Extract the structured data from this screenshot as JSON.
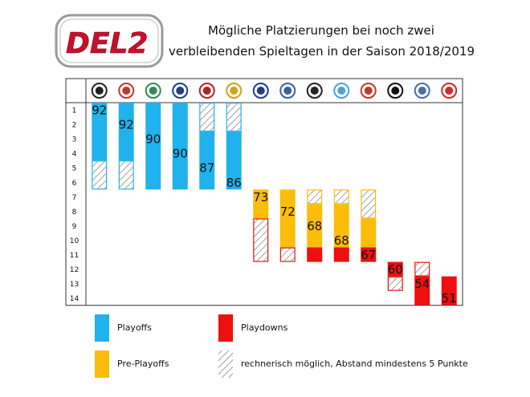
{
  "header": {
    "logo_text": "DEL2",
    "title_line1": "Mögliche Platzierungen bei noch zwei",
    "title_line2": "verbleibenden Spieltagen in der Saison 2018/2019"
  },
  "colors": {
    "playoffs": "#1fb2ec",
    "pre_playoffs": "#fcbc0a",
    "playdowns": "#ee0f0f",
    "hatch_line": "#777777",
    "grid": "#333333"
  },
  "chart_data": {
    "type": "bar",
    "orientation": "vertical-range",
    "y_axis": {
      "labels": [
        "1",
        "2",
        "3",
        "4",
        "5",
        "6",
        "7",
        "8",
        "9",
        "10",
        "11",
        "12",
        "13",
        "14"
      ],
      "inverted": true
    },
    "teams": [
      {
        "icon": "team-logo-1",
        "points": 92,
        "zone": "playoffs",
        "best": 1,
        "worst": 6,
        "possible_from": 5,
        "possible_to": 6
      },
      {
        "icon": "team-logo-2",
        "points": 92,
        "zone": "playoffs",
        "best": 1,
        "worst": 6,
        "possible_from": 5,
        "possible_to": 6
      },
      {
        "icon": "team-logo-3",
        "points": 90,
        "zone": "playoffs",
        "best": 1,
        "worst": 6,
        "possible_from": null,
        "possible_to": null
      },
      {
        "icon": "team-logo-4",
        "points": 90,
        "zone": "playoffs",
        "best": 1,
        "worst": 6,
        "possible_from": null,
        "possible_to": null
      },
      {
        "icon": "team-logo-5",
        "points": 87,
        "zone": "playoffs",
        "best": 1,
        "worst": 6,
        "possible_from": 1,
        "possible_to": 2
      },
      {
        "icon": "team-logo-6",
        "points": 86,
        "zone": "playoffs",
        "best": 1,
        "worst": 6,
        "possible_from": 1,
        "possible_to": 2
      },
      {
        "icon": "team-logo-7",
        "points": 73,
        "zone": "pre-playoffs",
        "best": 7,
        "worst": 11,
        "possible_from": 9,
        "possible_to": 11
      },
      {
        "icon": "team-logo-8",
        "points": 72,
        "zone": "pre-playoffs",
        "best": 7,
        "worst": 11,
        "possible_from": 11,
        "possible_to": 11
      },
      {
        "icon": "team-logo-9",
        "points": 68,
        "zone": "pre-playoffs",
        "best": 7,
        "worst": 11,
        "possible_from": 7,
        "possible_to": 7
      },
      {
        "icon": "team-logo-10",
        "points": 68,
        "zone": "pre-playoffs",
        "best": 7,
        "worst": 11,
        "possible_from": 7,
        "possible_to": 7
      },
      {
        "icon": "team-logo-11",
        "points": 67,
        "zone": "pre-playoffs",
        "best": 7,
        "worst": 11,
        "possible_from": 7,
        "possible_to": 8
      },
      {
        "icon": "team-logo-12",
        "points": 60,
        "zone": "playdowns",
        "best": 12,
        "worst": 13,
        "possible_from": 13,
        "possible_to": 13
      },
      {
        "icon": "team-logo-13",
        "points": 54,
        "zone": "playdowns",
        "best": 12,
        "worst": 14,
        "possible_from": 12,
        "possible_to": 12
      },
      {
        "icon": "team-logo-14",
        "points": 51,
        "zone": "playdowns",
        "best": 13,
        "worst": 14,
        "possible_from": null,
        "possible_to": null
      }
    ],
    "bar_segments": [
      {
        "col": 0,
        "from": 1,
        "to": 4,
        "zone": "playoffs"
      },
      {
        "col": 1,
        "from": 1,
        "to": 4,
        "zone": "playoffs"
      },
      {
        "col": 2,
        "from": 1,
        "to": 6,
        "zone": "playoffs"
      },
      {
        "col": 3,
        "from": 1,
        "to": 6,
        "zone": "playoffs"
      },
      {
        "col": 4,
        "from": 3,
        "to": 6,
        "zone": "playoffs"
      },
      {
        "col": 5,
        "from": 3,
        "to": 6,
        "zone": "playoffs"
      },
      {
        "col": 6,
        "from": 7,
        "to": 8,
        "zone": "pre-playoffs"
      },
      {
        "col": 7,
        "from": 7,
        "to": 10,
        "zone": "pre-playoffs"
      },
      {
        "col": 8,
        "from": 8,
        "to": 10,
        "zone": "pre-playoffs"
      },
      {
        "col": 8,
        "from": 11,
        "to": 11,
        "zone": "playdowns"
      },
      {
        "col": 9,
        "from": 8,
        "to": 10,
        "zone": "pre-playoffs"
      },
      {
        "col": 9,
        "from": 11,
        "to": 11,
        "zone": "playdowns"
      },
      {
        "col": 10,
        "from": 9,
        "to": 10,
        "zone": "pre-playoffs"
      },
      {
        "col": 10,
        "from": 11,
        "to": 11,
        "zone": "playdowns"
      },
      {
        "col": 11,
        "from": 12,
        "to": 12,
        "zone": "playdowns"
      },
      {
        "col": 12,
        "from": 13,
        "to": 14,
        "zone": "playdowns"
      },
      {
        "col": 13,
        "from": 13,
        "to": 14,
        "zone": "playdowns"
      }
    ],
    "hatch_segments": [
      {
        "col": 0,
        "from": 5,
        "to": 6,
        "border": "playoffs"
      },
      {
        "col": 1,
        "from": 5,
        "to": 6,
        "border": "playoffs"
      },
      {
        "col": 4,
        "from": 1,
        "to": 2,
        "border": "playoffs"
      },
      {
        "col": 5,
        "from": 1,
        "to": 2,
        "border": "playoffs"
      },
      {
        "col": 6,
        "from": 9,
        "to": 11,
        "border": "playdowns"
      },
      {
        "col": 7,
        "from": 11,
        "to": 11,
        "border": "playdowns"
      },
      {
        "col": 8,
        "from": 7,
        "to": 7,
        "border": "pre-playoffs"
      },
      {
        "col": 9,
        "from": 7,
        "to": 7,
        "border": "pre-playoffs"
      },
      {
        "col": 10,
        "from": 7,
        "to": 8,
        "border": "pre-playoffs"
      },
      {
        "col": 11,
        "from": 13,
        "to": 13,
        "border": "playdowns"
      },
      {
        "col": 12,
        "from": 12,
        "to": 12,
        "border": "playdowns"
      }
    ],
    "value_labels": [
      {
        "col": 0,
        "row": 1,
        "text": "92"
      },
      {
        "col": 1,
        "row": 2,
        "text": "92"
      },
      {
        "col": 2,
        "row": 3,
        "text": "90"
      },
      {
        "col": 3,
        "row": 4,
        "text": "90"
      },
      {
        "col": 4,
        "row": 5,
        "text": "87"
      },
      {
        "col": 5,
        "row": 6,
        "text": "86"
      },
      {
        "col": 6,
        "row": 7,
        "text": "73"
      },
      {
        "col": 7,
        "row": 8,
        "text": "72"
      },
      {
        "col": 8,
        "row": 9,
        "text": "68"
      },
      {
        "col": 9,
        "row": 10,
        "text": "68"
      },
      {
        "col": 10,
        "row": 11,
        "text": "67"
      },
      {
        "col": 11,
        "row": 12,
        "text": "60"
      },
      {
        "col": 12,
        "row": 13,
        "text": "54"
      },
      {
        "col": 13,
        "row": 14,
        "text": "51"
      }
    ],
    "legend": [
      {
        "key": "playoffs",
        "label": "Playoffs"
      },
      {
        "key": "playdowns",
        "label": "Playdowns"
      },
      {
        "key": "pre-playoffs",
        "label": "Pre-Playoffs"
      },
      {
        "key": "hatch",
        "label": "rechnerisch möglich, Abstand mindestens 5 Punkte"
      }
    ]
  }
}
